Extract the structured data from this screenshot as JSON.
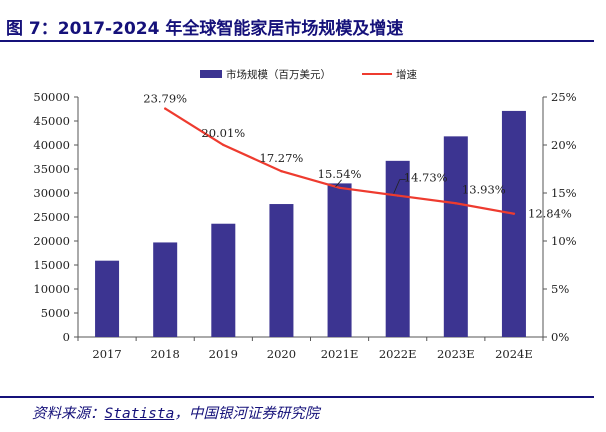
{
  "figure": {
    "title": "图 7：2017-2024 年全球智能家居市场规模及增速",
    "source_label": "资料来源：",
    "source_name": "Statista",
    "source_rest": "，中国银河证券研究院"
  },
  "colors": {
    "bar": "#3c3491",
    "line": "#ee3b2f",
    "title": "#15117a"
  },
  "chart_data": {
    "type": "bar",
    "categories": [
      "2017",
      "2018",
      "2019",
      "2020",
      "2021E",
      "2022E",
      "2023E",
      "2024E"
    ],
    "series": [
      {
        "name": "市场规模（百万美元）",
        "type": "bar",
        "axis": "left",
        "values": [
          15900,
          19700,
          23600,
          27700,
          32000,
          36700,
          41800,
          47100
        ]
      },
      {
        "name": "增速",
        "type": "line",
        "axis": "right",
        "values": [
          null,
          23.79,
          20.01,
          17.27,
          15.54,
          14.73,
          13.93,
          12.84
        ],
        "labels": [
          null,
          "23.79%",
          "20.01%",
          "17.27%",
          "15.54%",
          "14.73%",
          "13.93%",
          "12.84%"
        ]
      }
    ],
    "ylim_left": [
      0,
      50000
    ],
    "yticks_left": [
      "0",
      "5000",
      "10000",
      "15000",
      "20000",
      "25000",
      "30000",
      "35000",
      "40000",
      "45000",
      "50000"
    ],
    "ylim_right": [
      0,
      25
    ],
    "yticks_right": [
      "0%",
      "5%",
      "10%",
      "15%",
      "20%",
      "25%"
    ],
    "legend_position": "top",
    "grid": false
  }
}
